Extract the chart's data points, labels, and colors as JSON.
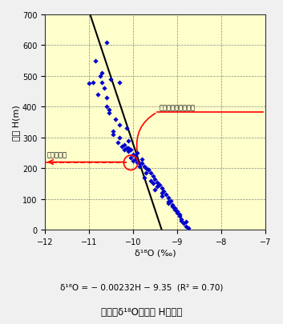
{
  "background_color": "#FFFFCC",
  "scatter_color": "#0000CC",
  "regression_color": "#000000",
  "xlabel": "δ¹⁸O (‰)",
  "ylabel": "標高 H(m)",
  "xlim": [
    -12.0,
    -7.0
  ],
  "ylim": [
    0,
    700
  ],
  "xticks": [
    -12.0,
    -11.0,
    -10.0,
    -9.0,
    -8.0,
    -7.0
  ],
  "yticks": [
    0,
    100,
    200,
    300,
    400,
    500,
    600,
    700
  ],
  "regression_slope": -0.00232,
  "regression_intercept": -9.35,
  "recharge_elevation": 220,
  "annotation_spring": "湧水の安定同位体比",
  "annotation_recharge": "浵養域標高",
  "formula_text": "δ¹⁸O = − 0.00232H − 9.35  (R² = 0.70)",
  "figure_caption": "図２：δ¹⁸Oと標高 Hの関係",
  "scatter_x": [
    -11.0,
    -10.85,
    -10.75,
    -10.65,
    -10.55,
    -10.5,
    -10.45,
    -10.35,
    -10.3,
    -10.25,
    -10.2,
    -10.15,
    -10.1,
    -10.05,
    -10.05,
    -10.0,
    -10.0,
    -9.95,
    -9.9,
    -9.85,
    -9.8,
    -9.75,
    -9.7,
    -9.65,
    -9.6,
    -9.55,
    -9.5,
    -9.45,
    -9.4,
    -9.35,
    -9.3,
    -9.25,
    -9.2,
    -9.15,
    -9.1,
    -9.05,
    -9.0,
    -8.95,
    -8.9,
    -8.85,
    -8.8,
    -8.75,
    -10.9,
    -10.8,
    -10.7,
    -10.6,
    -10.55,
    -10.45,
    -10.3,
    -10.2,
    -10.1,
    -9.95,
    -9.85,
    -9.75,
    -9.65,
    -9.55,
    -9.45,
    -9.35,
    -9.2,
    -9.1,
    -9.0,
    -8.9,
    -8.8,
    -10.7,
    -10.6,
    -10.4,
    -10.3,
    -10.15,
    -10.1,
    -9.9,
    -9.8,
    -9.7,
    -9.6,
    -9.5,
    -9.35,
    -9.2,
    -9.05,
    -8.95,
    -10.6
  ],
  "scatter_y": [
    475,
    550,
    500,
    460,
    380,
    490,
    310,
    285,
    480,
    270,
    260,
    265,
    255,
    260,
    235,
    245,
    225,
    230,
    220,
    215,
    215,
    205,
    200,
    195,
    185,
    175,
    165,
    155,
    145,
    135,
    125,
    115,
    105,
    95,
    80,
    70,
    55,
    45,
    30,
    20,
    10,
    5,
    480,
    440,
    510,
    400,
    390,
    320,
    300,
    275,
    265,
    240,
    205,
    170,
    195,
    150,
    140,
    120,
    90,
    75,
    60,
    35,
    25,
    480,
    430,
    360,
    340,
    330,
    290,
    250,
    230,
    185,
    160,
    130,
    110,
    85,
    65,
    50,
    610
  ]
}
